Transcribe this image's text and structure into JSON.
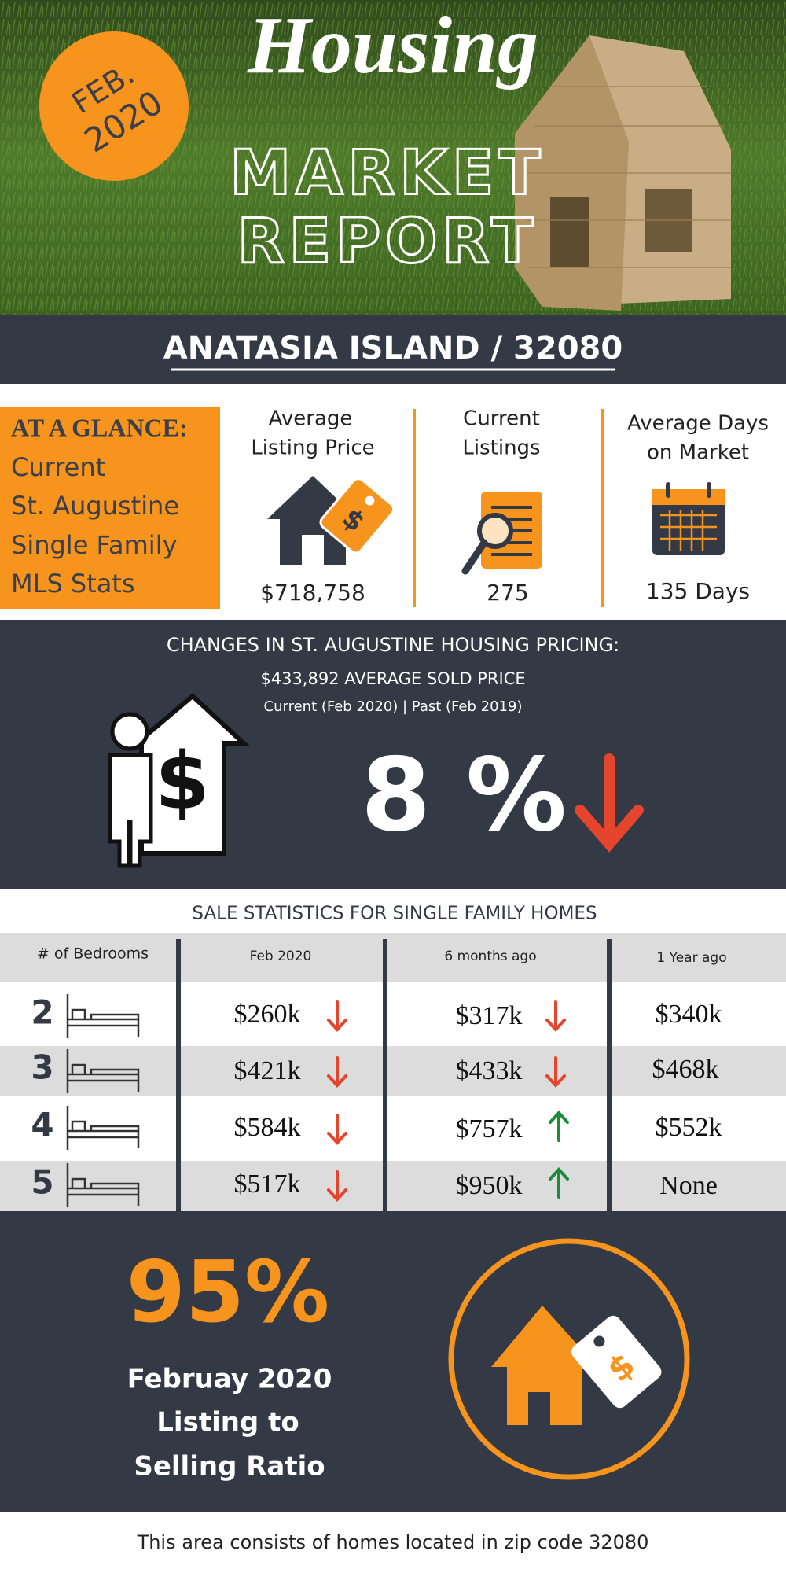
{
  "header": {
    "badge": [
      "FEB.",
      "2020"
    ],
    "title_script": "Housing",
    "title_lines": [
      "MARKET",
      "REPORT"
    ]
  },
  "location": "ANATASIA ISLAND / 32080",
  "glance": {
    "heading": "AT A GLANCE:",
    "lines": [
      "Current",
      "St. Augustine",
      "Single Family",
      "MLS Stats"
    ],
    "stats": [
      {
        "label": [
          "Average",
          "Listing Price"
        ],
        "value": "$718,758"
      },
      {
        "label": [
          "Current",
          "Listings"
        ],
        "value": "275"
      },
      {
        "label": [
          "Average Days",
          "on Market"
        ],
        "value": "135 Days"
      }
    ]
  },
  "pricing": {
    "title": "CHANGES IN ST. AUGUSTINE HOUSING PRICING:",
    "average_sold": "$433,892 AVERAGE SOLD PRICE",
    "comparison": "Current (Feb 2020) | Past (Feb 2019)",
    "change": "8 %"
  },
  "sale_statistics": {
    "title": "SALE STATISTICS FOR SINGLE FAMILY HOMES",
    "columns": [
      "# of Bedrooms",
      "Feb 2020",
      "6 months ago",
      "1 Year ago"
    ],
    "rows": [
      [
        "2",
        "$260k",
        "$317k",
        "$340k"
      ],
      [
        "3",
        "$421k",
        "$433k",
        "$468k"
      ],
      [
        "4",
        "$584k",
        "$757k",
        "$552k"
      ],
      [
        "5",
        "$517k",
        "$950k",
        "None"
      ]
    ]
  },
  "ratio": {
    "value": "95%",
    "caption": [
      "Februay 2020",
      "Listing to",
      "Selling Ratio"
    ]
  },
  "footer": "This area consists of homes located in zip code 32080"
}
